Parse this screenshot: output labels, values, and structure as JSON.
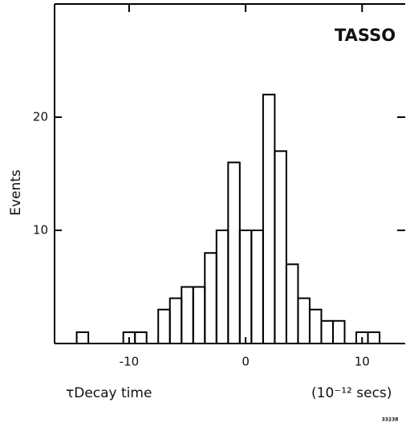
{
  "chart_data": {
    "type": "histogram",
    "annotation": "TASSO",
    "y_label": "Events",
    "x_label": "τDecay time",
    "x_unit": "(10⁻¹² secs)",
    "figure_number": "33238",
    "bins": [
      -14.5,
      -13.5,
      -12.5,
      -11.5,
      -10.5,
      -9.5,
      -8.5,
      -7.5,
      -6.5,
      -5.5,
      -4.5,
      -3.5,
      -2.5,
      -1.5,
      -0.5,
      0.5,
      1.5,
      2.5,
      3.5,
      4.5,
      5.5,
      6.5,
      7.5,
      8.5,
      9.5,
      10.5,
      11.5
    ],
    "values": [
      1,
      0,
      0,
      0,
      1,
      1,
      0,
      3,
      4,
      5,
      5,
      8,
      10,
      16,
      10,
      10,
      22,
      17,
      7,
      4,
      3,
      2,
      2,
      0,
      1,
      1
    ],
    "color": "#000000",
    "xlim": [
      -16.4,
      13.7
    ],
    "xticks": [
      -10,
      0,
      10
    ],
    "ylim": [
      0,
      30
    ],
    "yticks": [
      10,
      20
    ]
  }
}
